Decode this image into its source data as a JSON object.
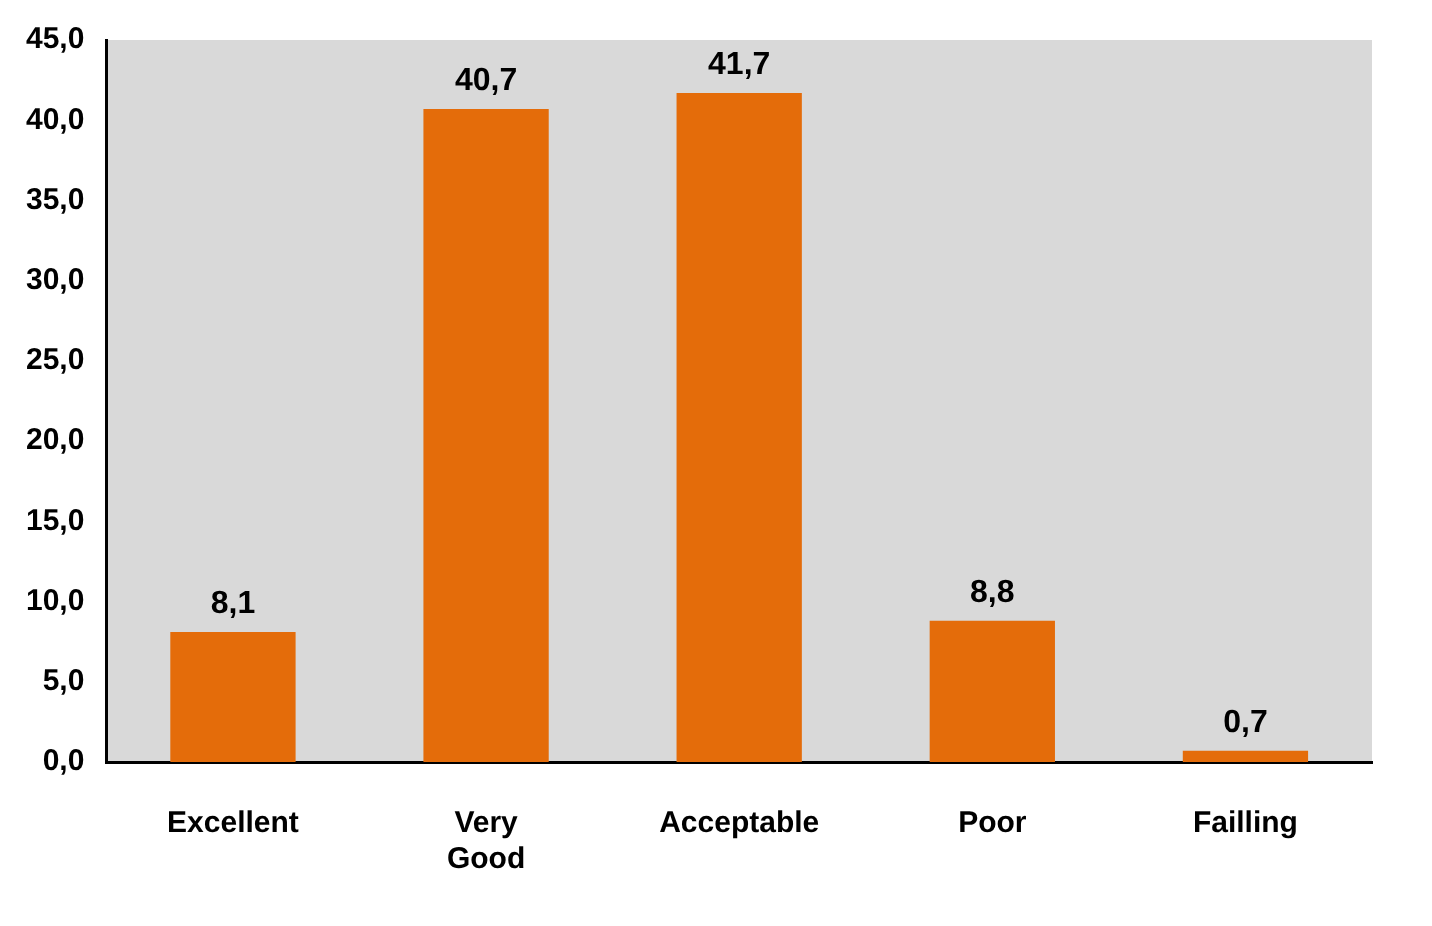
{
  "chart_data": {
    "type": "bar",
    "categories": [
      "Excellent",
      "Very Good",
      "Acceptable",
      "Poor",
      "Failling"
    ],
    "values": [
      8.1,
      40.7,
      41.7,
      8.8,
      0.7
    ],
    "value_labels": [
      "8,1",
      "40,7",
      "41,7",
      "8,8",
      "0,7"
    ],
    "color": "#e46c0a",
    "ylim": [
      0,
      45
    ],
    "yticks": [
      {
        "value": 0,
        "label": "0,0"
      },
      {
        "value": 5,
        "label": "5,0"
      },
      {
        "value": 10,
        "label": "10,0"
      },
      {
        "value": 15,
        "label": "15,0"
      },
      {
        "value": 20,
        "label": "20,0"
      },
      {
        "value": 25,
        "label": "25,0"
      },
      {
        "value": 30,
        "label": "30,0"
      },
      {
        "value": 35,
        "label": "35,0"
      },
      {
        "value": 40,
        "label": "40,0"
      },
      {
        "value": 45,
        "label": "45,0"
      }
    ],
    "grid": false,
    "legend": false
  }
}
